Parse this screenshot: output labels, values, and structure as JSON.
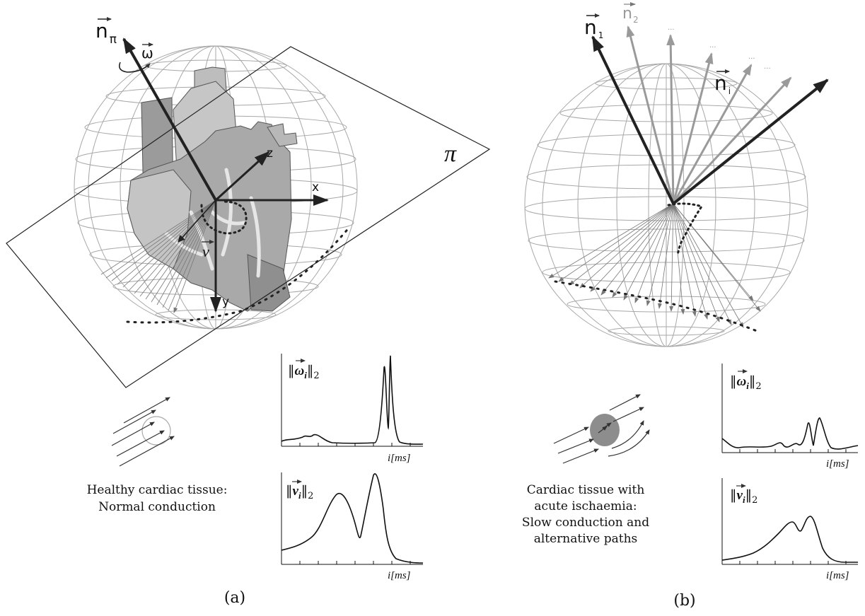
{
  "panel_a": {
    "label": "(a)",
    "normal_vector_label": "n",
    "normal_vector_subscript": "π",
    "angular_velocity_label": "ω",
    "plane_label": "π",
    "axis_x": "x",
    "axis_y": "y",
    "axis_z": "z",
    "velocity_label": "v",
    "caption_line1": "Healthy cardiac tissue:",
    "caption_line2": "Normal conduction",
    "plot_omega": {
      "ylabel_main": "ω",
      "ylabel_sub": "i",
      "ylabel_norm": "2",
      "xlabel_i": "i",
      "xlabel_unit": "[ms]"
    },
    "plot_v": {
      "ylabel_main": "v",
      "ylabel_sub": "i",
      "ylabel_norm": "2",
      "xlabel_i": "i",
      "xlabel_unit": "[ms]"
    }
  },
  "panel_b": {
    "label": "(b)",
    "n1_label": "n",
    "n1_subscript": "1",
    "n2_label": "n",
    "n2_subscript": "2",
    "ni_label": "n",
    "ni_subscript": "i",
    "ellipsis": "...",
    "caption_line1": "Cardiac tissue with",
    "caption_line2": "acute ischaemia:",
    "caption_line3": "Slow conduction and",
    "caption_line4": "alternative paths",
    "plot_omega": {
      "ylabel_main": "ω",
      "ylabel_sub": "i",
      "ylabel_norm": "2",
      "xlabel_i": "i",
      "xlabel_unit": "[ms]"
    },
    "plot_v": {
      "ylabel_main": "v",
      "ylabel_sub": "i",
      "ylabel_norm": "2",
      "xlabel_i": "i",
      "xlabel_unit": "[ms]"
    }
  },
  "colors": {
    "dark_arrow": "#222222",
    "gray_arrow": "#9a9a9a",
    "sphere_grid": "#a8a8a8",
    "heart_light": "#c2c2c2",
    "heart_mid": "#a9a9a9",
    "heart_dark": "#8d8d8d"
  }
}
